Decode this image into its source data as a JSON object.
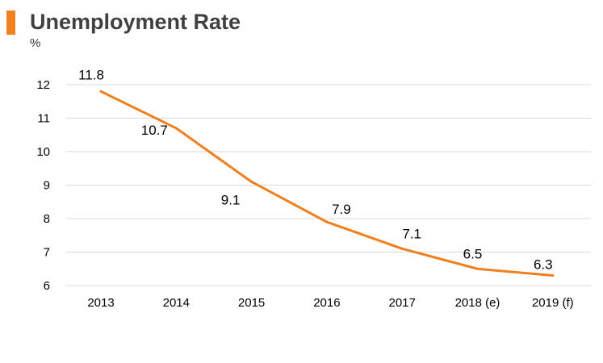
{
  "header": {
    "title": "Unemployment Rate",
    "accent_color": "#f07f1e"
  },
  "chart_data": {
    "type": "line",
    "title": "Unemployment Rate",
    "ylabel": "%",
    "xlabel": "",
    "categories": [
      "2013",
      "2014",
      "2015",
      "2016",
      "2017",
      "2018 (e)",
      "2019 (f)"
    ],
    "values": [
      11.8,
      10.7,
      9.1,
      7.9,
      7.1,
      6.5,
      6.3
    ],
    "data_labels": [
      "11.8",
      "10.7",
      "9.1",
      "7.9",
      "7.1",
      "6.5",
      "6.3"
    ],
    "ylim": [
      6,
      12
    ],
    "yticks": [
      "6",
      "7",
      "8",
      "9",
      "10",
      "11",
      "12"
    ],
    "grid": true,
    "legend": "none",
    "line_color": "#f07f1e",
    "grid_color": "#d9d9d9"
  }
}
